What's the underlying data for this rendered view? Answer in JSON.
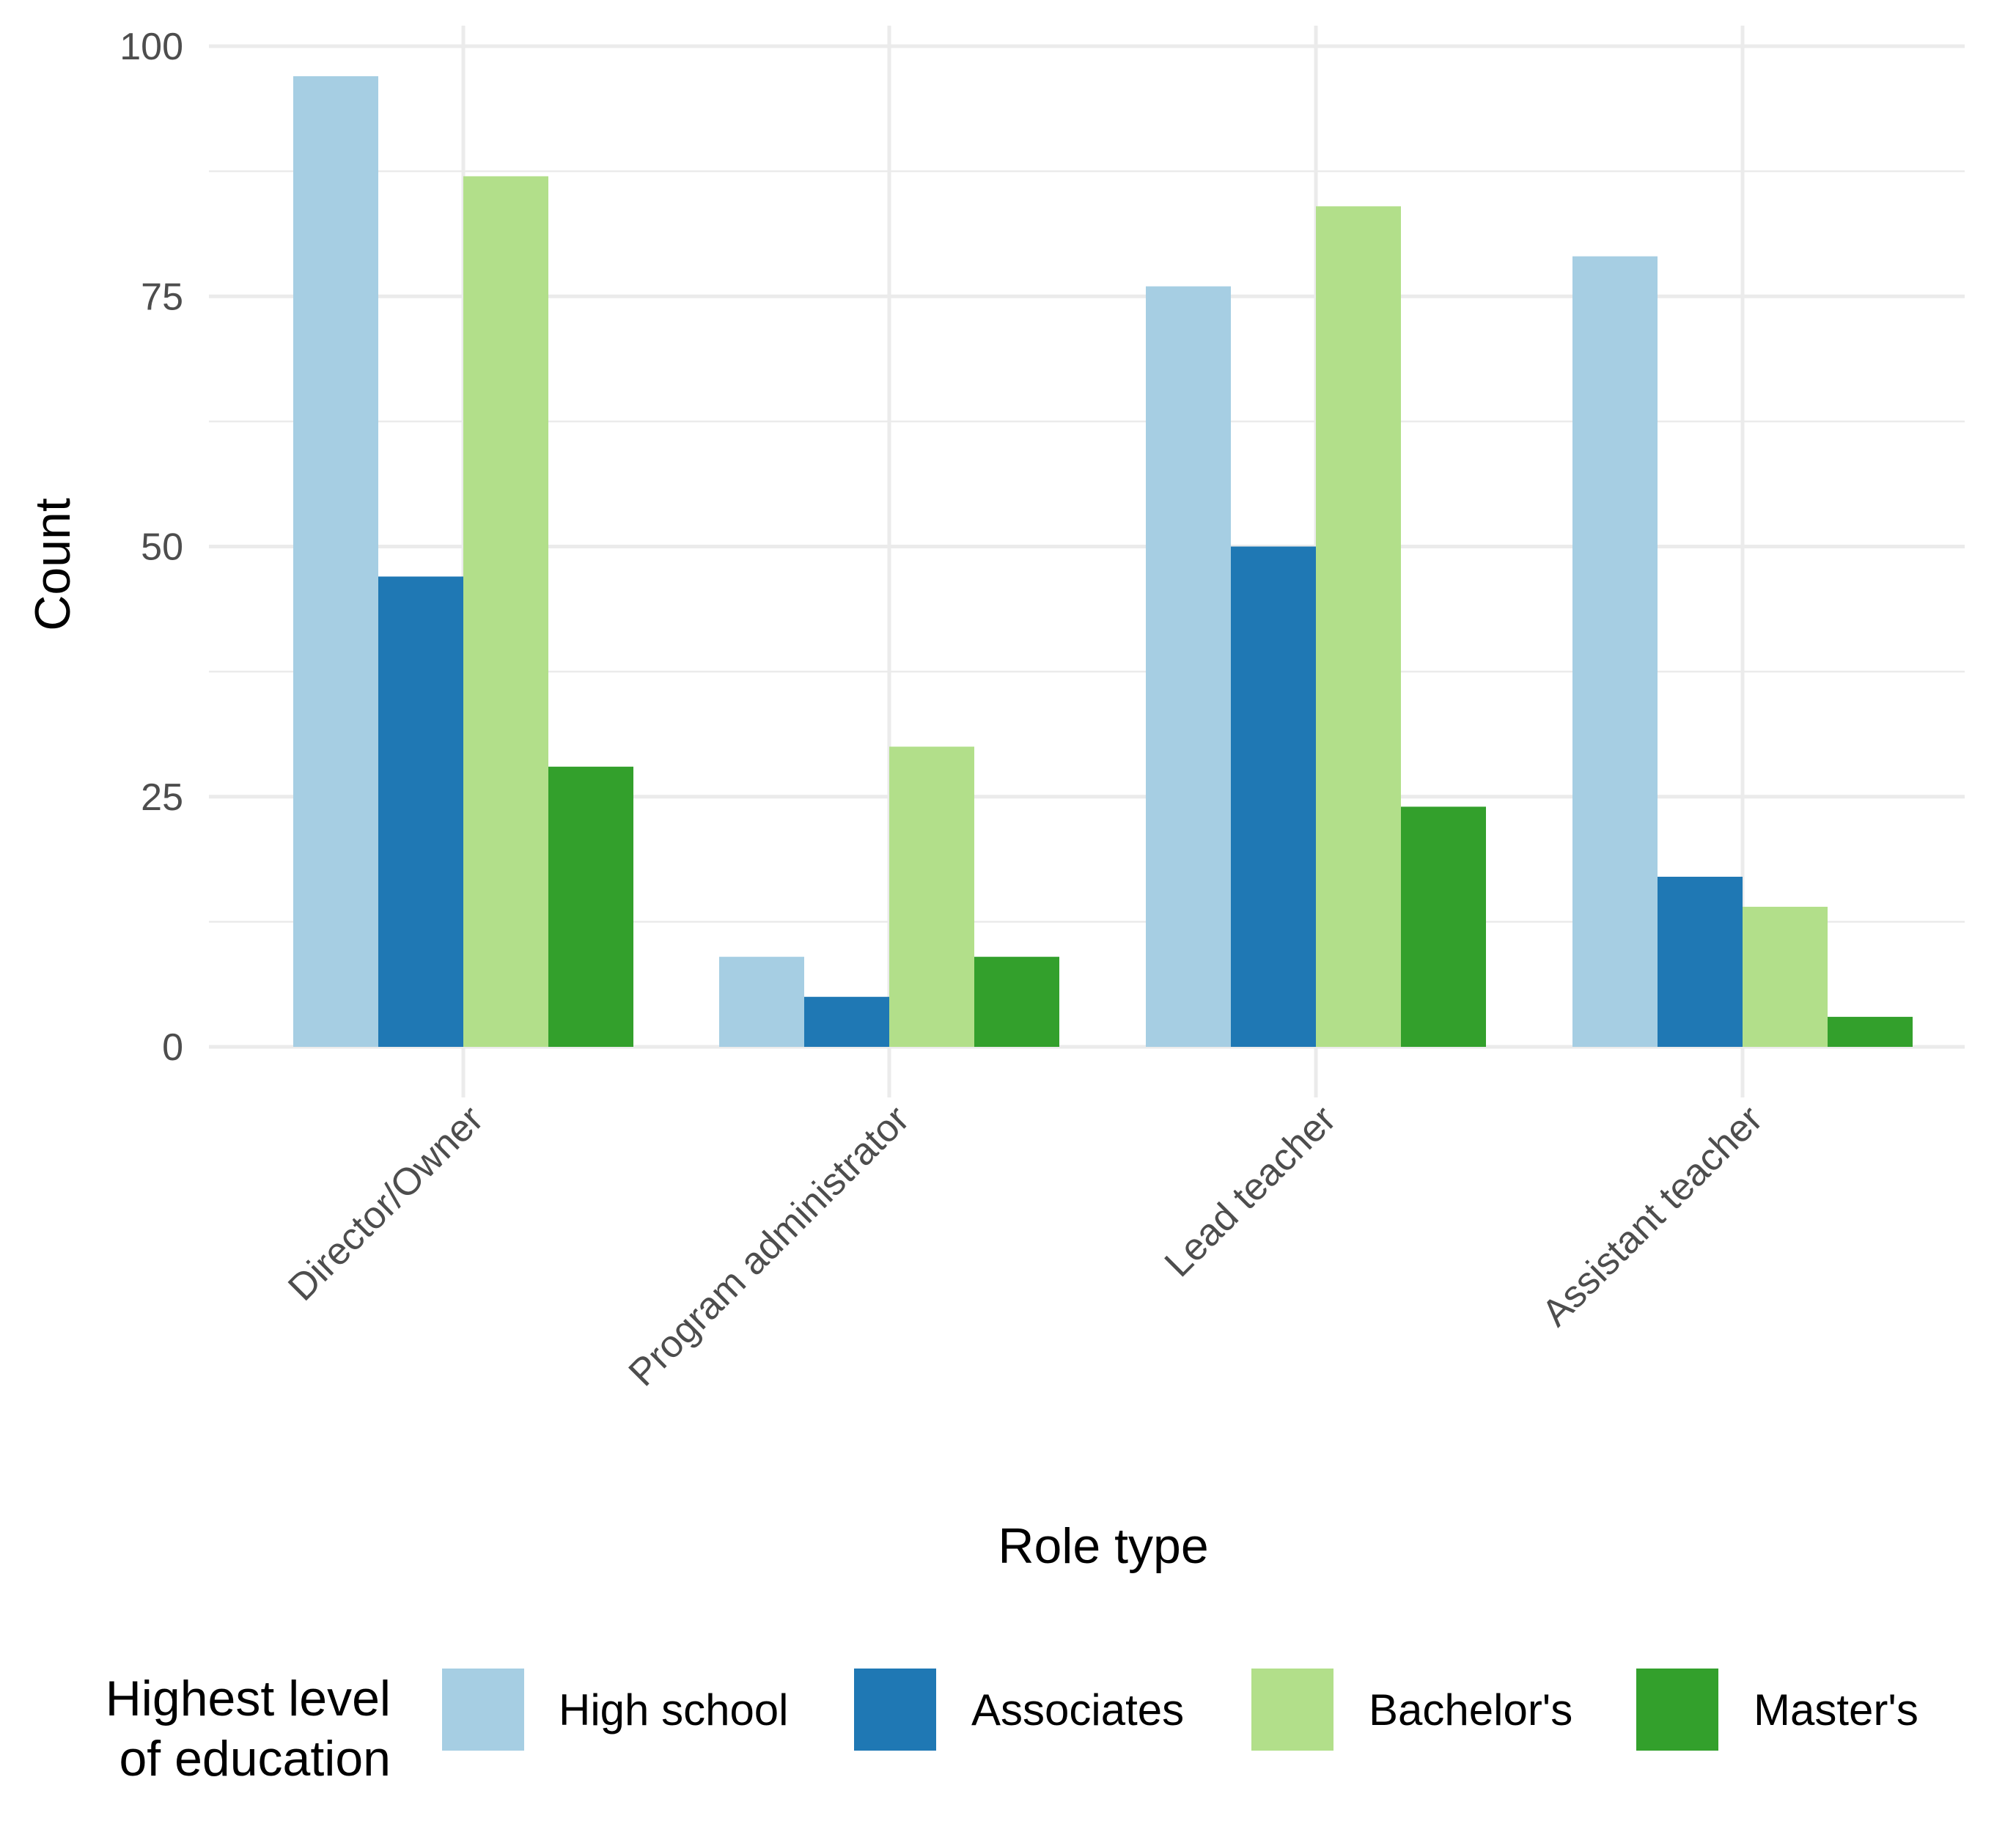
{
  "chart_data": {
    "type": "bar",
    "xlabel": "Role type",
    "ylabel": "Count",
    "ylim": [
      0,
      100
    ],
    "yticks": [
      "0",
      "25",
      "50",
      "75",
      "100"
    ],
    "grid": true,
    "categories": [
      "Director/Owner",
      "Program administrator",
      "Lead teacher",
      "Assistant teacher"
    ],
    "legend": {
      "title_line1": "Highest level",
      "title_line2": "of education",
      "placement": "bottom"
    },
    "series": [
      {
        "name": "High school",
        "color": "#a6cee3",
        "values": [
          97,
          9,
          76,
          79
        ]
      },
      {
        "name": "Associates",
        "color": "#1f78b4",
        "values": [
          47,
          5,
          50,
          17
        ]
      },
      {
        "name": "Bachelor's",
        "color": "#b2df8a",
        "values": [
          87,
          30,
          84,
          14
        ]
      },
      {
        "name": "Master's",
        "color": "#33a02c",
        "values": [
          28,
          9,
          24,
          3
        ]
      }
    ]
  }
}
